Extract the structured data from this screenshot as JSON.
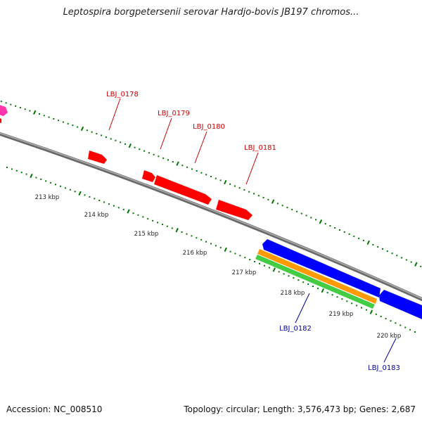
{
  "title": "Leptospira borgpetersenii serovar Hardjo-bovis JB197 chromos...",
  "footer": {
    "accession": "Accession: NC_008510",
    "summary": "Topology: circular; Length: 3,576,473 bp; Genes: 2,687"
  },
  "map": {
    "ruler_labels": [
      "213 kbp",
      "214 kbp",
      "215 kbp",
      "216 kbp",
      "217 kbp",
      "218 kbp",
      "219 kbp",
      "220 kbp"
    ],
    "gene_labels": [
      "LBJ_0178",
      "LBJ_0179",
      "LBJ_0180",
      "LBJ_0181",
      "LBJ_0182",
      "LBJ_0183"
    ],
    "colors": {
      "backbone": "#8a8a8a",
      "forward_gene": "#ff0000",
      "reverse_gene": "#0000ff",
      "magenta_feature": "#ff33aa",
      "orange_feature": "#ff9900",
      "green_feature": "#44cc44",
      "tick_marks": "#007700",
      "forward_label": "#cc0000",
      "reverse_label": "#000099"
    }
  }
}
